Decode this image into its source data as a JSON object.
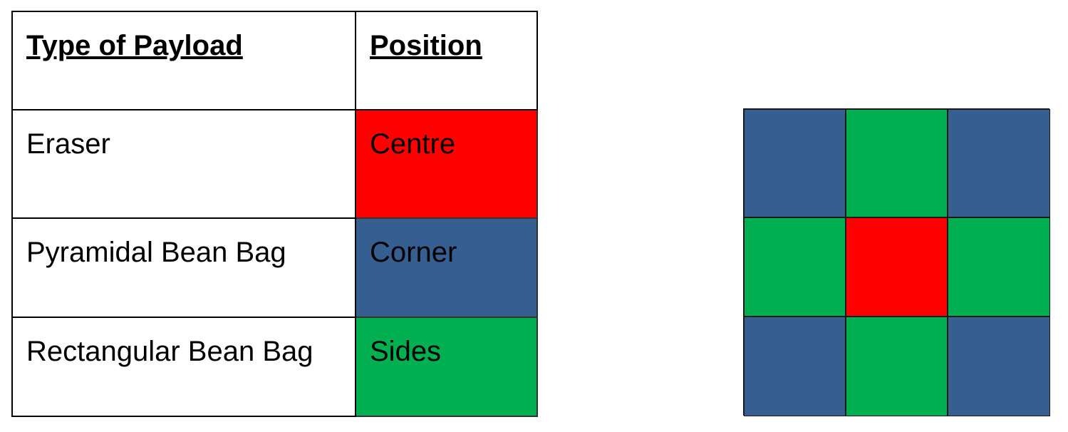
{
  "table": {
    "headers": {
      "type": "Type of Payload",
      "position": "Position"
    },
    "rows": [
      {
        "payload": "Eraser",
        "position": "Centre",
        "color": "#ff0000"
      },
      {
        "payload": "Pyramidal Bean Bag",
        "position": "Corner",
        "color": "#365f91"
      },
      {
        "payload": "Rectangular Bean Bag",
        "position": "Sides",
        "color": "#00b050"
      }
    ]
  },
  "grid": {
    "rows": 3,
    "cols": 3,
    "cells": [
      [
        "Corner",
        "Sides",
        "Corner"
      ],
      [
        "Sides",
        "Centre",
        "Sides"
      ],
      [
        "Corner",
        "Sides",
        "Corner"
      ]
    ]
  },
  "colors": {
    "Centre": "#ff0000",
    "Corner": "#365f91",
    "Sides": "#00b050",
    "border": "#000000"
  }
}
